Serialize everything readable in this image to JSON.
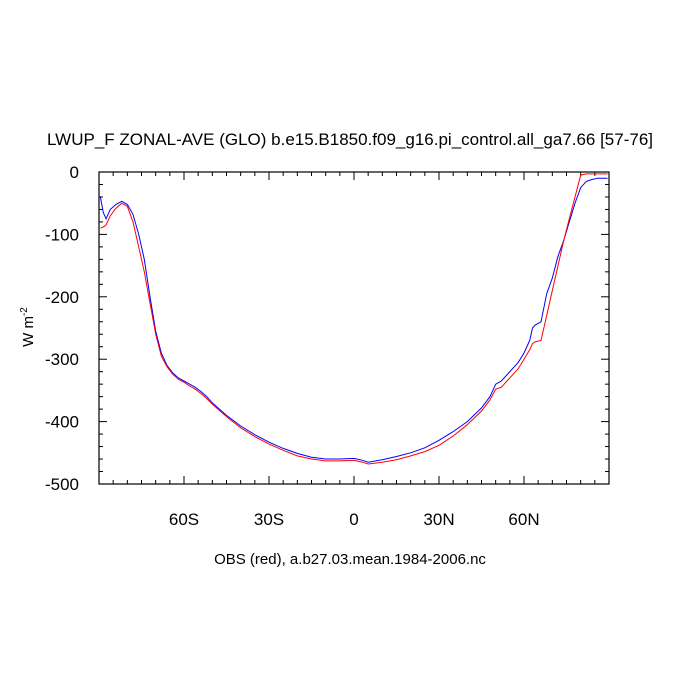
{
  "chart_data": {
    "type": "line",
    "title": "LWUP_F ZONAL-AVE (GLO) b.e15.B1850.f09_g16.pi_control.all_ga7.66 [57-76]",
    "caption": "OBS (red), a.b27.03.mean.1984-2006.nc",
    "ylabel": "W m",
    "ylabel_superscript": "-2",
    "xlim": [
      -90,
      90
    ],
    "ylim": [
      -500,
      0
    ],
    "xticks": [
      {
        "value": -60,
        "label": "60S"
      },
      {
        "value": -30,
        "label": "30S"
      },
      {
        "value": 0,
        "label": "0"
      },
      {
        "value": 30,
        "label": "30N"
      },
      {
        "value": 60,
        "label": "60N"
      }
    ],
    "yticks": [
      {
        "value": 0,
        "label": "0"
      },
      {
        "value": -100,
        "label": "-100"
      },
      {
        "value": -200,
        "label": "-200"
      },
      {
        "value": -300,
        "label": "-300"
      },
      {
        "value": -400,
        "label": "-400"
      },
      {
        "value": -500,
        "label": "-500"
      }
    ],
    "series": [
      {
        "color": "#0000ff",
        "x": [
          -89.5,
          -88.5,
          -87.5,
          -86,
          -84,
          -82,
          -80,
          -78,
          -76,
          -74,
          -72,
          -70,
          -68,
          -66,
          -64,
          -62,
          -60,
          -58,
          -56,
          -54,
          -52,
          -50,
          -45,
          -40,
          -35,
          -30,
          -25,
          -20,
          -15,
          -10,
          -5,
          0,
          3,
          5,
          10,
          15,
          20,
          25,
          30,
          35,
          40,
          45,
          48,
          50,
          52,
          55,
          58,
          60,
          62,
          63,
          64,
          66,
          68,
          70,
          72,
          74,
          76,
          78,
          80,
          82,
          84,
          86,
          88,
          89.5
        ],
        "y": [
          -40,
          -65,
          -75,
          -60,
          -52,
          -47,
          -52,
          -68,
          -100,
          -140,
          -200,
          -255,
          -290,
          -310,
          -322,
          -330,
          -335,
          -340,
          -345,
          -352,
          -360,
          -370,
          -390,
          -407,
          -421,
          -433,
          -443,
          -451,
          -457,
          -460,
          -460,
          -459,
          -462,
          -465,
          -461,
          -456,
          -450,
          -442,
          -430,
          -416,
          -400,
          -378,
          -360,
          -340,
          -335,
          -320,
          -305,
          -290,
          -270,
          -250,
          -245,
          -240,
          -195,
          -170,
          -135,
          -110,
          -80,
          -50,
          -25,
          -15,
          -12,
          -10,
          -10,
          -10
        ]
      },
      {
        "color": "#ff0000",
        "x": [
          -89.5,
          -88.5,
          -87.5,
          -86,
          -84,
          -82,
          -80,
          -78,
          -76,
          -74,
          -72,
          -70,
          -68,
          -66,
          -64,
          -62,
          -60,
          -58,
          -56,
          -54,
          -52,
          -50,
          -45,
          -40,
          -35,
          -30,
          -25,
          -20,
          -15,
          -10,
          -5,
          0,
          3,
          5,
          10,
          15,
          20,
          25,
          30,
          35,
          40,
          45,
          48,
          50,
          52,
          55,
          58,
          60,
          62,
          63,
          64,
          66,
          68,
          70,
          72,
          74,
          76,
          78,
          80,
          82,
          84,
          86,
          88,
          89.5
        ],
        "y": [
          -90,
          -88,
          -85,
          -70,
          -58,
          -50,
          -55,
          -80,
          -120,
          -160,
          -210,
          -260,
          -295,
          -312,
          -324,
          -332,
          -337,
          -343,
          -348,
          -355,
          -363,
          -372,
          -392,
          -410,
          -424,
          -436,
          -446,
          -455,
          -460,
          -463,
          -463,
          -462,
          -465,
          -468,
          -465,
          -461,
          -455,
          -448,
          -438,
          -423,
          -405,
          -383,
          -365,
          -348,
          -345,
          -330,
          -315,
          -300,
          -285,
          -275,
          -272,
          -270,
          -230,
          -190,
          -150,
          -110,
          -75,
          -40,
          -5,
          -3,
          -3,
          -3,
          -3,
          -3
        ]
      }
    ]
  }
}
